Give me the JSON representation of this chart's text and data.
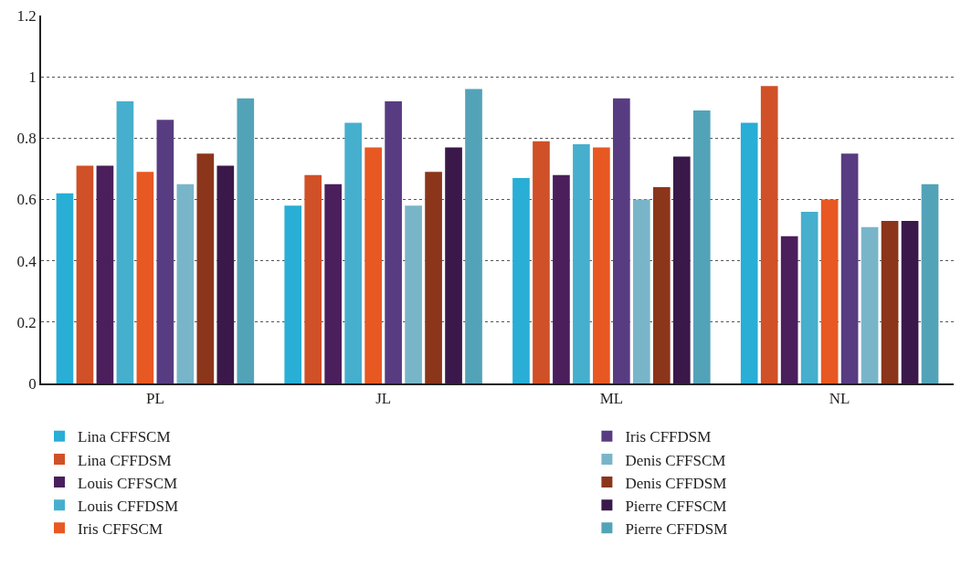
{
  "chart_data": {
    "type": "bar",
    "categories": [
      "PL",
      "JL",
      "ML",
      "NL"
    ],
    "series": [
      {
        "name": "Lina CFFSCM",
        "color": "#29aed6",
        "values": [
          0.62,
          0.58,
          0.67,
          0.85
        ]
      },
      {
        "name": "Lina CFFDSM",
        "color": "#d05027",
        "values": [
          0.71,
          0.68,
          0.79,
          0.97
        ]
      },
      {
        "name": "Louis CFFSCM",
        "color": "#4a1f5c",
        "values": [
          0.71,
          0.65,
          0.68,
          0.48
        ]
      },
      {
        "name": "Louis CFFDSM",
        "color": "#46afcd",
        "values": [
          0.92,
          0.85,
          0.78,
          0.56
        ]
      },
      {
        "name": "Iris CFFSCM",
        "color": "#e85822",
        "values": [
          0.69,
          0.77,
          0.77,
          0.6
        ]
      },
      {
        "name": "Iris CFFDSM",
        "color": "#583c82",
        "values": [
          0.86,
          0.92,
          0.93,
          0.75
        ]
      },
      {
        "name": "Denis CFFSCM",
        "color": "#79b5c9",
        "values": [
          0.65,
          0.58,
          0.6,
          0.51
        ]
      },
      {
        "name": "Denis CFFDSM",
        "color": "#8b351b",
        "values": [
          0.75,
          0.69,
          0.64,
          0.53
        ]
      },
      {
        "name": "Pierre CFFSCM",
        "color": "#3a184a",
        "values": [
          0.71,
          0.77,
          0.74,
          0.53
        ]
      },
      {
        "name": "Pierre CFFDSM",
        "color": "#53a3b8",
        "values": [
          0.93,
          0.96,
          0.89,
          0.65
        ]
      }
    ],
    "ylim": [
      0,
      1.2
    ],
    "yticks": [
      0,
      0.2,
      0.4,
      0.6,
      0.8,
      1,
      1.2
    ],
    "grid": "y",
    "legend": "bottom"
  }
}
